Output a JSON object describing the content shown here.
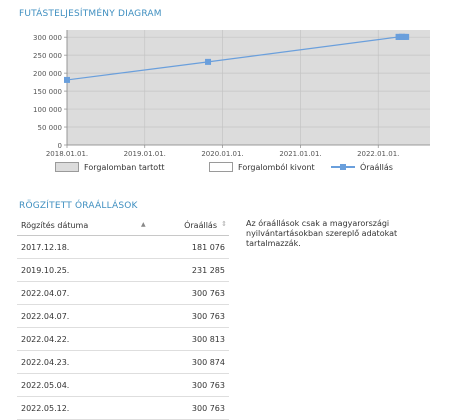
{
  "chart_section": {
    "title": "FUTÁSTELJESÍTMÉNY DIAGRAM"
  },
  "chart_data": {
    "type": "line",
    "y_ticks": [
      "0",
      "50 000",
      "100 000",
      "150 000",
      "200 000",
      "250 000",
      "300 000"
    ],
    "x_ticks": [
      "2018.01.01.",
      "2019.01.01.",
      "2020.01.01.",
      "2021.01.01.",
      "2022.01.01."
    ],
    "ylim": [
      0,
      320000
    ],
    "xlim": [
      "2018-01-01",
      "2022-09-01"
    ],
    "series": [
      {
        "name": "Óraállás",
        "color": "#6a9fdc",
        "points": [
          {
            "x": "2017-12-18",
            "y": 181076
          },
          {
            "x": "2019-10-25",
            "y": 231285
          },
          {
            "x": "2022-04-07",
            "y": 300763
          },
          {
            "x": "2022-04-07",
            "y": 300763
          },
          {
            "x": "2022-04-22",
            "y": 300813
          },
          {
            "x": "2022-04-23",
            "y": 300874
          },
          {
            "x": "2022-05-04",
            "y": 300763
          },
          {
            "x": "2022-05-12",
            "y": 300763
          }
        ]
      }
    ],
    "plot_background": "#dcdcdc",
    "grid": true
  },
  "legend": {
    "in_traffic": "Forgalomban tartott",
    "out_of_traffic": "Forgalomból kivont",
    "odometer": "Óraállás"
  },
  "logs_section": {
    "title": "RÖGZÍTETT ÓRAÁLLÁSOK"
  },
  "table": {
    "col_date": "Rögzítés dátuma",
    "col_value": "Óraállás",
    "rows": [
      {
        "date": "2017.12.18.",
        "value": "181 076"
      },
      {
        "date": "2019.10.25.",
        "value": "231 285"
      },
      {
        "date": "2022.04.07.",
        "value": "300 763"
      },
      {
        "date": "2022.04.07.",
        "value": "300 763"
      },
      {
        "date": "2022.04.22.",
        "value": "300 813"
      },
      {
        "date": "2022.04.23.",
        "value": "300 874"
      },
      {
        "date": "2022.05.04.",
        "value": "300 763"
      },
      {
        "date": "2022.05.12.",
        "value": "300 763"
      }
    ]
  },
  "note": "Az óraállások csak a magyarországi nyilvántartásokban szereplő adatokat tartalmazzák."
}
